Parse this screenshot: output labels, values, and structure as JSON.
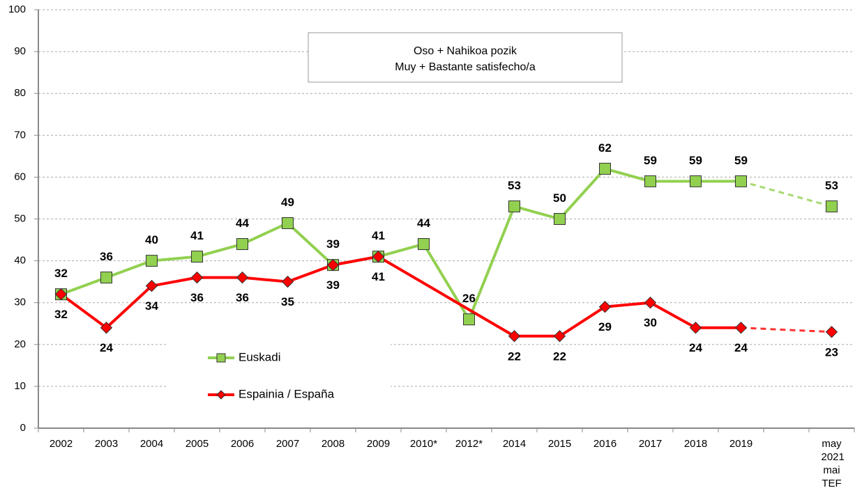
{
  "chart_data": {
    "type": "line",
    "title": "Oso + Nahikoa pozik",
    "subtitle": "Muy + Bastante satisfecho/a",
    "categories": [
      "2002",
      "2003",
      "2004",
      "2005",
      "2006",
      "2007",
      "2008",
      "2009",
      "2010*",
      "2012*",
      "2014",
      "2015",
      "2016",
      "2017",
      "2018",
      "2019",
      null,
      "may 2021 mai TEF"
    ],
    "series": [
      {
        "name": "Euskadi",
        "color": "#92d050",
        "marker": "square",
        "values": [
          32,
          36,
          40,
          41,
          44,
          49,
          39,
          41,
          44,
          26,
          53,
          50,
          62,
          59,
          59,
          59,
          null,
          53
        ]
      },
      {
        "name": "Espainia / España",
        "color": "#ff0000",
        "marker": "diamond",
        "values": [
          32,
          24,
          34,
          36,
          36,
          35,
          39,
          41,
          null,
          null,
          22,
          22,
          29,
          30,
          24,
          24,
          null,
          23
        ]
      }
    ],
    "ylim": [
      0,
      100
    ],
    "yticks": [
      0,
      10,
      20,
      30,
      40,
      50,
      60,
      70,
      80,
      90,
      100
    ],
    "grid": true,
    "last_segment_dashed": true,
    "legend": "bottom-left"
  }
}
